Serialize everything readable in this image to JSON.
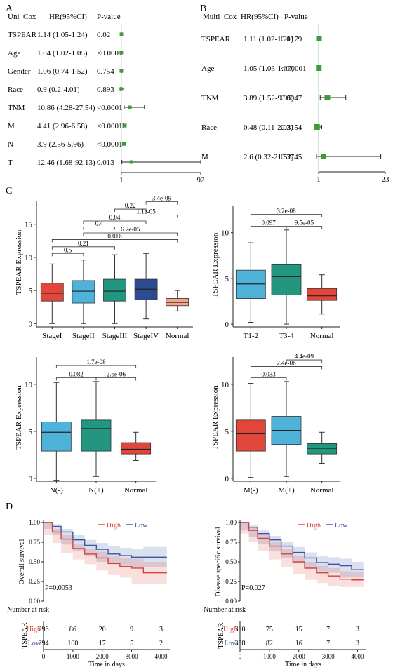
{
  "panels": {
    "a": "A",
    "b": "B",
    "c": "C",
    "d": "D"
  },
  "forest_a": {
    "headers": {
      "model": "Uni_Cox",
      "hr": "HR(95%CI)",
      "p": "P-value"
    },
    "rows": [
      {
        "label": "TSPEAR",
        "ci_text": "1.14 (1.05-1.24)",
        "p": "0.02",
        "hr": 1.14,
        "lo": 1.05,
        "hi": 1.24
      },
      {
        "label": "Age",
        "ci_text": "1.04 (1.02-1.05)",
        "p": "<0.0001",
        "hr": 1.04,
        "lo": 1.02,
        "hi": 1.05
      },
      {
        "label": "Gender",
        "ci_text": "1.06 (0.74-1.52)",
        "p": "0.754",
        "hr": 1.06,
        "lo": 0.74,
        "hi": 1.52
      },
      {
        "label": "Race",
        "ci_text": "0.9 (0.2-4.01)",
        "p": "0.893",
        "hr": 0.9,
        "lo": 0.2,
        "hi": 4.01
      },
      {
        "label": "TNM",
        "ci_text": "10.86 (4.28-27.54)",
        "p": "<0.0001",
        "hr": 10.86,
        "lo": 4.28,
        "hi": 27.54
      },
      {
        "label": "M",
        "ci_text": "4.41 (2.96-6.58)",
        "p": "<0.0001",
        "hr": 4.41,
        "lo": 2.96,
        "hi": 6.58
      },
      {
        "label": "N",
        "ci_text": "3.9 (2.56-5.96)",
        "p": "<0.0001",
        "hr": 3.9,
        "lo": 2.56,
        "hi": 5.96
      },
      {
        "label": "T",
        "ci_text": "12.46 (1.68-92.13)",
        "p": "0.013",
        "hr": 12.46,
        "lo": 1.68,
        "hi": 92.13
      }
    ],
    "xticks": [
      1,
      92
    ],
    "xlim": [
      0,
      92
    ]
  },
  "forest_b": {
    "headers": {
      "model": "Multi_Cox",
      "hr": "HR(95%CI)",
      "p": "P-value"
    },
    "rows": [
      {
        "label": "TSPEAR",
        "ci_text": "1.11 (1.02-1.21)",
        "p": "0.0179",
        "hr": 1.11,
        "lo": 1.02,
        "hi": 1.21
      },
      {
        "label": "Age",
        "ci_text": "1.05 (1.03-1.07)",
        "p": "<0.0001",
        "hr": 1.05,
        "lo": 1.03,
        "hi": 1.07
      },
      {
        "label": "TNM",
        "ci_text": "3.89 (1.52-9.96)",
        "p": "0.0047",
        "hr": 3.89,
        "lo": 1.52,
        "hi": 9.96
      },
      {
        "label": "Race",
        "ci_text": "0.48 (0.11-2.03)",
        "p": "0.3154",
        "hr": 0.48,
        "lo": 0.11,
        "hi": 2.03
      },
      {
        "label": "M",
        "ci_text": "2.6 (0.32-21.52)",
        "p": "0.3745",
        "hr": 2.6,
        "lo": 0.32,
        "hi": 21.52
      }
    ],
    "xticks": [
      1,
      23
    ],
    "xlim": [
      0,
      23
    ]
  },
  "box_plots": [
    {
      "id": "stage",
      "ylabel": "TSPEAR Expression",
      "ylim": [
        -0.5,
        19
      ],
      "yticks": [
        0,
        5,
        10,
        15
      ],
      "groups": [
        {
          "label": "StageI",
          "color": "#e2463a",
          "min": 0,
          "q1": 3.4,
          "median": 4.6,
          "q3": 6.1,
          "max": 9.0
        },
        {
          "label": "StageII",
          "color": "#4fb3d9",
          "min": 0,
          "q1": 3.1,
          "median": 4.9,
          "q3": 6.5,
          "max": 9.6
        },
        {
          "label": "StageIII",
          "color": "#23967f",
          "min": 0,
          "q1": 3.4,
          "median": 4.9,
          "q3": 6.7,
          "max": 10.4
        },
        {
          "label": "StageIV",
          "color": "#2f4b8f",
          "min": 0.7,
          "q1": 3.6,
          "median": 5.2,
          "q3": 6.7,
          "max": 10.6
        },
        {
          "label": "Normal",
          "color": "#f0a48a",
          "min": 1.9,
          "q1": 2.7,
          "median": 3.2,
          "q3": 3.8,
          "max": 5.0
        }
      ],
      "brackets": [
        {
          "from": 0,
          "to": 1,
          "y": 10.6,
          "label": "0.5"
        },
        {
          "from": 0,
          "to": 2,
          "y": 11.6,
          "label": "0.21"
        },
        {
          "from": 0,
          "to": 4,
          "y": 12.7,
          "label": "0.016"
        },
        {
          "from": 1,
          "to": 4,
          "y": 13.7,
          "label": "6.2e-05"
        },
        {
          "from": 1,
          "to": 2,
          "y": 14.6,
          "label": "0.4"
        },
        {
          "from": 1,
          "to": 3,
          "y": 15.5,
          "label": "0.04"
        },
        {
          "from": 2,
          "to": 4,
          "y": 16.4,
          "label": "1.1e-05"
        },
        {
          "from": 2,
          "to": 3,
          "y": 17.3,
          "label": "0.22"
        },
        {
          "from": 3,
          "to": 4,
          "y": 18.4,
          "label": "3.4e-09"
        }
      ]
    },
    {
      "id": "t",
      "ylabel": "TSPEAR Expression",
      "ylim": [
        -0.3,
        13.2
      ],
      "yticks": [
        0,
        5,
        10
      ],
      "groups": [
        {
          "label": "T1-2",
          "color": "#4fb3d9",
          "min": 0.2,
          "q1": 2.8,
          "median": 4.4,
          "q3": 5.9,
          "max": 8.9
        },
        {
          "label": "T3-4",
          "color": "#23967f",
          "min": 0,
          "q1": 3.2,
          "median": 5.2,
          "q3": 6.5,
          "max": 10.3
        },
        {
          "label": "Normal",
          "color": "#e2463a",
          "min": 1.1,
          "q1": 2.6,
          "median": 3.1,
          "q3": 3.9,
          "max": 5.4
        }
      ],
      "brackets": [
        {
          "from": 0,
          "to": 1,
          "y": 10.7,
          "label": "0.097"
        },
        {
          "from": 1,
          "to": 2,
          "y": 10.7,
          "label": "9.5e-05"
        },
        {
          "from": 0,
          "to": 2,
          "y": 12.0,
          "label": "3.2e-08"
        }
      ]
    },
    {
      "id": "n",
      "ylabel": "TSPEAR Expression",
      "ylim": [
        -0.3,
        13.2
      ],
      "yticks": [
        0,
        5,
        10
      ],
      "groups": [
        {
          "label": "N(-)",
          "color": "#4fb3d9",
          "min": -0.2,
          "q1": 2.9,
          "median": 4.9,
          "q3": 6.0,
          "max": 10.2
        },
        {
          "label": "N(+)",
          "color": "#23967f",
          "min": 0.2,
          "q1": 2.9,
          "median": 5.3,
          "q3": 6.2,
          "max": 10.3
        },
        {
          "label": "Normal",
          "color": "#e2463a",
          "min": 1.9,
          "q1": 2.6,
          "median": 3.1,
          "q3": 3.8,
          "max": 4.9
        }
      ],
      "brackets": [
        {
          "from": 0,
          "to": 1,
          "y": 10.7,
          "label": "0.082"
        },
        {
          "from": 1,
          "to": 2,
          "y": 10.7,
          "label": "2.6e-06"
        },
        {
          "from": 0,
          "to": 2,
          "y": 12.0,
          "label": "1.7e-08"
        }
      ]
    },
    {
      "id": "m",
      "ylabel": "TSPEAR Expression",
      "ylim": [
        -0.3,
        13.2
      ],
      "yticks": [
        0,
        5,
        10
      ],
      "groups": [
        {
          "label": "M(-)",
          "color": "#e2463a",
          "min": 0.1,
          "q1": 2.9,
          "median": 4.8,
          "q3": 6.2,
          "max": 10.1
        },
        {
          "label": "M(+)",
          "color": "#4fb3d9",
          "min": 0.2,
          "q1": 3.6,
          "median": 5.1,
          "q3": 6.6,
          "max": 10.3
        },
        {
          "label": "Normal",
          "color": "#23967f",
          "min": 1.6,
          "q1": 2.6,
          "median": 3.2,
          "q3": 3.7,
          "max": 4.9
        }
      ],
      "brackets": [
        {
          "from": 0,
          "to": 1,
          "y": 10.7,
          "label": "0.033"
        },
        {
          "from": 0,
          "to": 2,
          "y": 11.9,
          "label": "2.4e-06"
        },
        {
          "from": 1,
          "to": 2,
          "y": 12.6,
          "label": "4.4e-09"
        }
      ]
    }
  ],
  "km_plots": [
    {
      "id": "os",
      "ylabel": "Overall survival",
      "pvalue": "P=0.0053",
      "legend": {
        "high": "High",
        "low": "Low"
      },
      "colors": {
        "high": "#d9413a",
        "low": "#3a55a5"
      },
      "yticks": [
        "0.00",
        "0.25",
        "0.50",
        "0.75",
        "1.00"
      ],
      "xticks": [
        0,
        1000,
        2000,
        3000,
        4000
      ],
      "xlim": [
        0,
        4300
      ],
      "xlabel": "Time in days",
      "risk_title": "Number at risk",
      "risk_label": "TSPEAR",
      "risk_rows": [
        {
          "group": "High",
          "values": [
            "296",
            "86",
            "20",
            "9",
            "3"
          ]
        },
        {
          "group": "Low",
          "values": [
            "294",
            "100",
            "17",
            "5",
            "2"
          ]
        }
      ],
      "high_curve": [
        [
          0,
          1.0
        ],
        [
          300,
          0.88
        ],
        [
          600,
          0.79
        ],
        [
          1000,
          0.67
        ],
        [
          1400,
          0.6
        ],
        [
          1800,
          0.55
        ],
        [
          2200,
          0.48
        ],
        [
          2600,
          0.44
        ],
        [
          3000,
          0.42
        ],
        [
          3400,
          0.36
        ],
        [
          3800,
          0.36
        ],
        [
          4200,
          0.36
        ]
      ],
      "low_curve": [
        [
          0,
          1.0
        ],
        [
          300,
          0.95
        ],
        [
          600,
          0.88
        ],
        [
          1000,
          0.78
        ],
        [
          1400,
          0.71
        ],
        [
          1800,
          0.66
        ],
        [
          2200,
          0.6
        ],
        [
          2600,
          0.58
        ],
        [
          3000,
          0.56
        ],
        [
          3400,
          0.56
        ],
        [
          4200,
          0.56
        ]
      ],
      "high_band": {
        "upper": [
          1.0,
          0.92,
          0.84,
          0.73,
          0.67,
          0.63,
          0.57,
          0.55,
          0.54,
          0.5,
          0.5,
          0.5
        ],
        "lower": [
          1.0,
          0.84,
          0.74,
          0.61,
          0.53,
          0.47,
          0.39,
          0.33,
          0.3,
          0.22,
          0.22,
          0.22
        ]
      },
      "low_band": {
        "upper": [
          1.0,
          0.98,
          0.92,
          0.84,
          0.78,
          0.74,
          0.7,
          0.68,
          0.67,
          0.69,
          0.69
        ],
        "lower": [
          1.0,
          0.92,
          0.84,
          0.72,
          0.64,
          0.58,
          0.5,
          0.47,
          0.45,
          0.43,
          0.43
        ]
      }
    },
    {
      "id": "dss",
      "ylabel": "Disease specific survival",
      "pvalue": "P=0.027",
      "legend": {
        "high": "High",
        "low": "Low"
      },
      "colors": {
        "high": "#d9413a",
        "low": "#3a55a5"
      },
      "yticks": [
        "0.00",
        "0.25",
        "0.50",
        "0.75",
        "1.00"
      ],
      "xticks": [
        0,
        1000,
        2000,
        3000,
        4000
      ],
      "xlim": [
        0,
        4300
      ],
      "xlabel": "Time in days",
      "risk_title": "Number at risk",
      "risk_label": "TSPEAR",
      "risk_rows": [
        {
          "group": "High",
          "values": [
            "310",
            "75",
            "15",
            "7",
            "3"
          ]
        },
        {
          "group": "Low",
          "values": [
            "308",
            "82",
            "16",
            "7",
            "3"
          ]
        }
      ],
      "high_curve": [
        [
          0,
          1.0
        ],
        [
          300,
          0.9
        ],
        [
          600,
          0.8
        ],
        [
          1000,
          0.7
        ],
        [
          1400,
          0.6
        ],
        [
          1800,
          0.5
        ],
        [
          2200,
          0.42
        ],
        [
          2600,
          0.36
        ],
        [
          3000,
          0.32
        ],
        [
          3400,
          0.28
        ],
        [
          3800,
          0.27
        ],
        [
          4200,
          0.27
        ]
      ],
      "low_curve": [
        [
          0,
          1.0
        ],
        [
          300,
          0.94
        ],
        [
          600,
          0.86
        ],
        [
          1000,
          0.78
        ],
        [
          1400,
          0.7
        ],
        [
          1800,
          0.62
        ],
        [
          2200,
          0.55
        ],
        [
          2600,
          0.49
        ],
        [
          3000,
          0.47
        ],
        [
          3400,
          0.45
        ],
        [
          3800,
          0.4
        ],
        [
          4200,
          0.4
        ]
      ],
      "high_band": {
        "upper": [
          1.0,
          0.94,
          0.85,
          0.76,
          0.67,
          0.58,
          0.5,
          0.45,
          0.42,
          0.38,
          0.37,
          0.37
        ],
        "lower": [
          1.0,
          0.86,
          0.75,
          0.64,
          0.53,
          0.43,
          0.34,
          0.27,
          0.23,
          0.19,
          0.18,
          0.18
        ]
      },
      "low_band": {
        "upper": [
          1.0,
          0.97,
          0.9,
          0.83,
          0.76,
          0.69,
          0.62,
          0.57,
          0.56,
          0.54,
          0.5,
          0.5
        ],
        "lower": [
          1.0,
          0.9,
          0.82,
          0.73,
          0.64,
          0.55,
          0.48,
          0.41,
          0.38,
          0.36,
          0.3,
          0.3
        ]
      }
    }
  ]
}
